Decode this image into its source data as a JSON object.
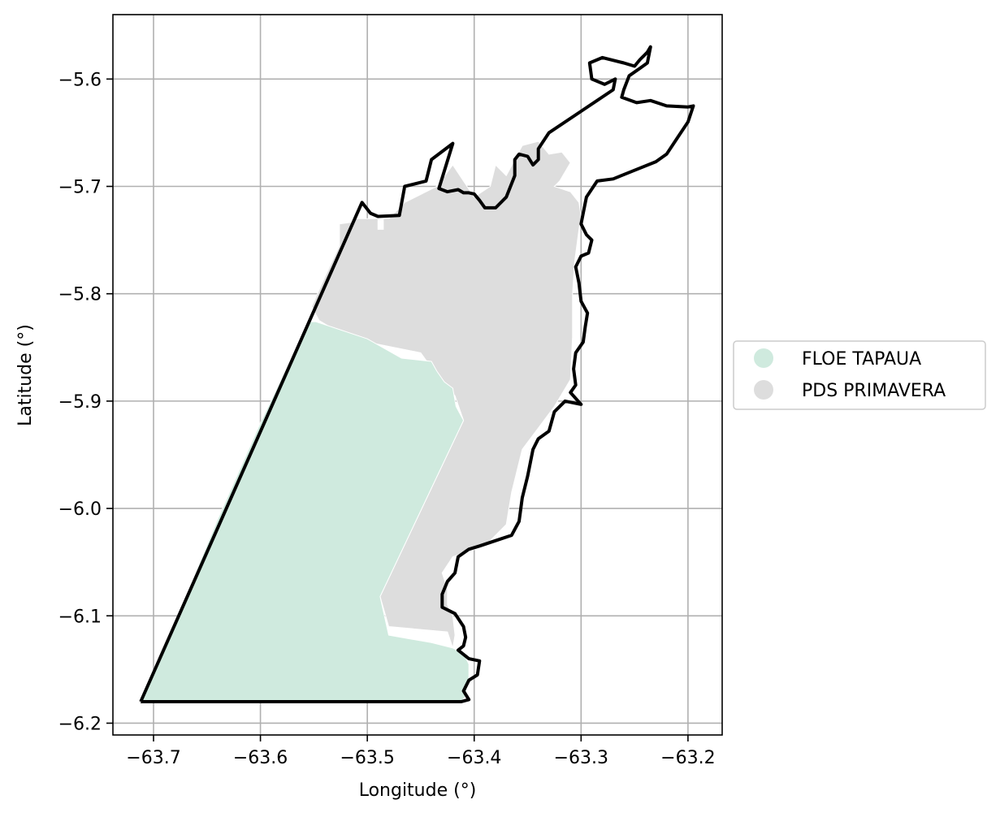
{
  "chart_data": {
    "type": "map",
    "xlabel": "Longitude (°)",
    "ylabel": "Latitude (°)",
    "xlim": [
      -63.738,
      -63.168
    ],
    "ylim": [
      -6.211,
      -5.54
    ],
    "xticks": [
      -63.7,
      -63.6,
      -63.5,
      -63.4,
      -63.3,
      -63.2
    ],
    "xtick_labels": [
      "−63.7",
      "−63.6",
      "−63.5",
      "−63.4",
      "−63.3",
      "−63.2"
    ],
    "yticks": [
      -5.6,
      -5.7,
      -5.8,
      -5.9,
      -6.0,
      -6.1,
      -6.2
    ],
    "ytick_labels": [
      "−5.6",
      "−5.7",
      "−5.8",
      "−5.9",
      "−6.0",
      "−6.1",
      "−6.2"
    ],
    "grid": true,
    "legend_position": "center-right outside",
    "colors": {
      "floe_tapaua": "#cfeade",
      "pds_primavera": "#dddddd",
      "boundary": "#000000",
      "grid": "#b0b0b0"
    },
    "legend": [
      {
        "label": "FLOE TAPAUA",
        "color": "#cfeade"
      },
      {
        "label": "PDS PRIMAVERA",
        "color": "#dddddd"
      }
    ],
    "layers": [
      {
        "name": "PDS PRIMAVERA",
        "fill": "#dddddd",
        "coords": [
          [
            -63.526,
            -5.735
          ],
          [
            -63.512,
            -5.733
          ],
          [
            -63.512,
            -5.73
          ],
          [
            -63.49,
            -5.73
          ],
          [
            -63.49,
            -5.74
          ],
          [
            -63.485,
            -5.74
          ],
          [
            -63.485,
            -5.73
          ],
          [
            -63.48,
            -5.73
          ],
          [
            -63.465,
            -5.715
          ],
          [
            -63.435,
            -5.7
          ],
          [
            -63.42,
            -5.68
          ],
          [
            -63.4,
            -5.71
          ],
          [
            -63.385,
            -5.7
          ],
          [
            -63.38,
            -5.68
          ],
          [
            -63.37,
            -5.69
          ],
          [
            -63.355,
            -5.662
          ],
          [
            -63.34,
            -5.658
          ],
          [
            -63.33,
            -5.67
          ],
          [
            -63.318,
            -5.668
          ],
          [
            -63.31,
            -5.678
          ],
          [
            -63.32,
            -5.695
          ],
          [
            -63.325,
            -5.7
          ],
          [
            -63.31,
            -5.705
          ],
          [
            -63.302,
            -5.715
          ],
          [
            -63.3,
            -5.728
          ],
          [
            -63.302,
            -5.74
          ],
          [
            -63.306,
            -5.77
          ],
          [
            -63.308,
            -5.8
          ],
          [
            -63.308,
            -5.84
          ],
          [
            -63.31,
            -5.88
          ],
          [
            -63.325,
            -5.905
          ],
          [
            -63.34,
            -5.925
          ],
          [
            -63.355,
            -5.945
          ],
          [
            -63.365,
            -5.985
          ],
          [
            -63.37,
            -6.015
          ],
          [
            -63.39,
            -6.035
          ],
          [
            -63.42,
            -6.045
          ],
          [
            -63.43,
            -6.06
          ],
          [
            -63.425,
            -6.075
          ],
          [
            -63.425,
            -6.09
          ],
          [
            -63.42,
            -6.1
          ],
          [
            -63.418,
            -6.118
          ],
          [
            -63.42,
            -6.13
          ],
          [
            -63.425,
            -6.115
          ],
          [
            -63.48,
            -6.11
          ],
          [
            -63.488,
            -6.082
          ],
          [
            -63.41,
            -5.918
          ],
          [
            -63.418,
            -5.895
          ],
          [
            -63.432,
            -5.88
          ],
          [
            -63.45,
            -5.855
          ],
          [
            -63.5,
            -5.845
          ],
          [
            -63.528,
            -5.835
          ],
          [
            -63.545,
            -5.825
          ],
          [
            -63.552,
            -5.812
          ],
          [
            -63.54,
            -5.785
          ],
          [
            -63.526,
            -5.755
          ]
        ]
      },
      {
        "name": "FLOE TAPAUA",
        "fill": "#cfeade",
        "coords": [
          [
            -63.555,
            -5.826
          ],
          [
            -63.548,
            -5.826
          ],
          [
            -63.53,
            -5.832
          ],
          [
            -63.5,
            -5.842
          ],
          [
            -63.468,
            -5.86
          ],
          [
            -63.44,
            -5.863
          ],
          [
            -63.435,
            -5.872
          ],
          [
            -63.428,
            -5.882
          ],
          [
            -63.42,
            -5.888
          ],
          [
            -63.417,
            -5.905
          ],
          [
            -63.41,
            -5.918
          ],
          [
            -63.488,
            -6.082
          ],
          [
            -63.48,
            -6.118
          ],
          [
            -63.44,
            -6.125
          ],
          [
            -63.42,
            -6.13
          ],
          [
            -63.41,
            -6.135
          ],
          [
            -63.405,
            -6.145
          ],
          [
            -63.405,
            -6.158
          ],
          [
            -63.408,
            -6.175
          ],
          [
            -63.412,
            -6.18
          ],
          [
            -63.712,
            -6.18
          ],
          [
            -63.69,
            -6.13
          ],
          [
            -63.64,
            -6.01
          ],
          [
            -63.6,
            -5.92
          ]
        ]
      }
    ],
    "boundary": {
      "name": "study area outline",
      "stroke": "#000000",
      "coords": [
        [
          -63.712,
          -6.18
        ],
        [
          -63.505,
          -5.715
        ],
        [
          -63.497,
          -5.725
        ],
        [
          -63.49,
          -5.728
        ],
        [
          -63.47,
          -5.727
        ],
        [
          -63.465,
          -5.7
        ],
        [
          -63.445,
          -5.695
        ],
        [
          -63.44,
          -5.675
        ],
        [
          -63.42,
          -5.66
        ],
        [
          -63.433,
          -5.702
        ],
        [
          -63.425,
          -5.705
        ],
        [
          -63.415,
          -5.703
        ],
        [
          -63.41,
          -5.706
        ],
        [
          -63.405,
          -5.706
        ],
        [
          -63.4,
          -5.707
        ],
        [
          -63.395,
          -5.713
        ],
        [
          -63.39,
          -5.72
        ],
        [
          -63.38,
          -5.72
        ],
        [
          -63.37,
          -5.71
        ],
        [
          -63.362,
          -5.69
        ],
        [
          -63.362,
          -5.675
        ],
        [
          -63.358,
          -5.67
        ],
        [
          -63.35,
          -5.672
        ],
        [
          -63.345,
          -5.68
        ],
        [
          -63.34,
          -5.675
        ],
        [
          -63.34,
          -5.665
        ],
        [
          -63.33,
          -5.65
        ],
        [
          -63.3,
          -5.63
        ],
        [
          -63.27,
          -5.61
        ],
        [
          -63.268,
          -5.6
        ],
        [
          -63.278,
          -5.605
        ],
        [
          -63.29,
          -5.6
        ],
        [
          -63.292,
          -5.585
        ],
        [
          -63.28,
          -5.58
        ],
        [
          -63.26,
          -5.585
        ],
        [
          -63.25,
          -5.588
        ],
        [
          -63.245,
          -5.582
        ],
        [
          -63.238,
          -5.575
        ],
        [
          -63.235,
          -5.57
        ],
        [
          -63.238,
          -5.585
        ],
        [
          -63.245,
          -5.59
        ],
        [
          -63.255,
          -5.597
        ],
        [
          -63.26,
          -5.61
        ],
        [
          -63.262,
          -5.617
        ],
        [
          -63.248,
          -5.622
        ],
        [
          -63.235,
          -5.62
        ],
        [
          -63.22,
          -5.625
        ],
        [
          -63.2,
          -5.626
        ],
        [
          -63.195,
          -5.625
        ],
        [
          -63.2,
          -5.64
        ],
        [
          -63.21,
          -5.655
        ],
        [
          -63.22,
          -5.67
        ],
        [
          -63.23,
          -5.677
        ],
        [
          -63.25,
          -5.685
        ],
        [
          -63.27,
          -5.693
        ],
        [
          -63.285,
          -5.695
        ],
        [
          -63.295,
          -5.71
        ],
        [
          -63.298,
          -5.725
        ],
        [
          -63.3,
          -5.735
        ],
        [
          -63.295,
          -5.745
        ],
        [
          -63.29,
          -5.75
        ],
        [
          -63.293,
          -5.762
        ],
        [
          -63.3,
          -5.765
        ],
        [
          -63.305,
          -5.775
        ],
        [
          -63.302,
          -5.79
        ],
        [
          -63.3,
          -5.807
        ],
        [
          -63.294,
          -5.818
        ],
        [
          -63.296,
          -5.83
        ],
        [
          -63.298,
          -5.845
        ],
        [
          -63.305,
          -5.855
        ],
        [
          -63.307,
          -5.87
        ],
        [
          -63.305,
          -5.885
        ],
        [
          -63.31,
          -5.892
        ],
        [
          -63.3,
          -5.903
        ],
        [
          -63.315,
          -5.9
        ],
        [
          -63.325,
          -5.91
        ],
        [
          -63.33,
          -5.928
        ],
        [
          -63.34,
          -5.935
        ],
        [
          -63.345,
          -5.945
        ],
        [
          -63.35,
          -5.97
        ],
        [
          -63.355,
          -5.99
        ],
        [
          -63.358,
          -6.012
        ],
        [
          -63.365,
          -6.025
        ],
        [
          -63.38,
          -6.03
        ],
        [
          -63.395,
          -6.035
        ],
        [
          -63.405,
          -6.038
        ],
        [
          -63.415,
          -6.045
        ],
        [
          -63.418,
          -6.06
        ],
        [
          -63.425,
          -6.068
        ],
        [
          -63.43,
          -6.08
        ],
        [
          -63.43,
          -6.092
        ],
        [
          -63.418,
          -6.098
        ],
        [
          -63.41,
          -6.11
        ],
        [
          -63.408,
          -6.12
        ],
        [
          -63.41,
          -6.128
        ],
        [
          -63.415,
          -6.132
        ],
        [
          -63.405,
          -6.14
        ],
        [
          -63.395,
          -6.142
        ],
        [
          -63.397,
          -6.155
        ],
        [
          -63.405,
          -6.16
        ],
        [
          -63.41,
          -6.17
        ],
        [
          -63.405,
          -6.178
        ],
        [
          -63.412,
          -6.18
        ],
        [
          -63.712,
          -6.18
        ]
      ]
    }
  }
}
